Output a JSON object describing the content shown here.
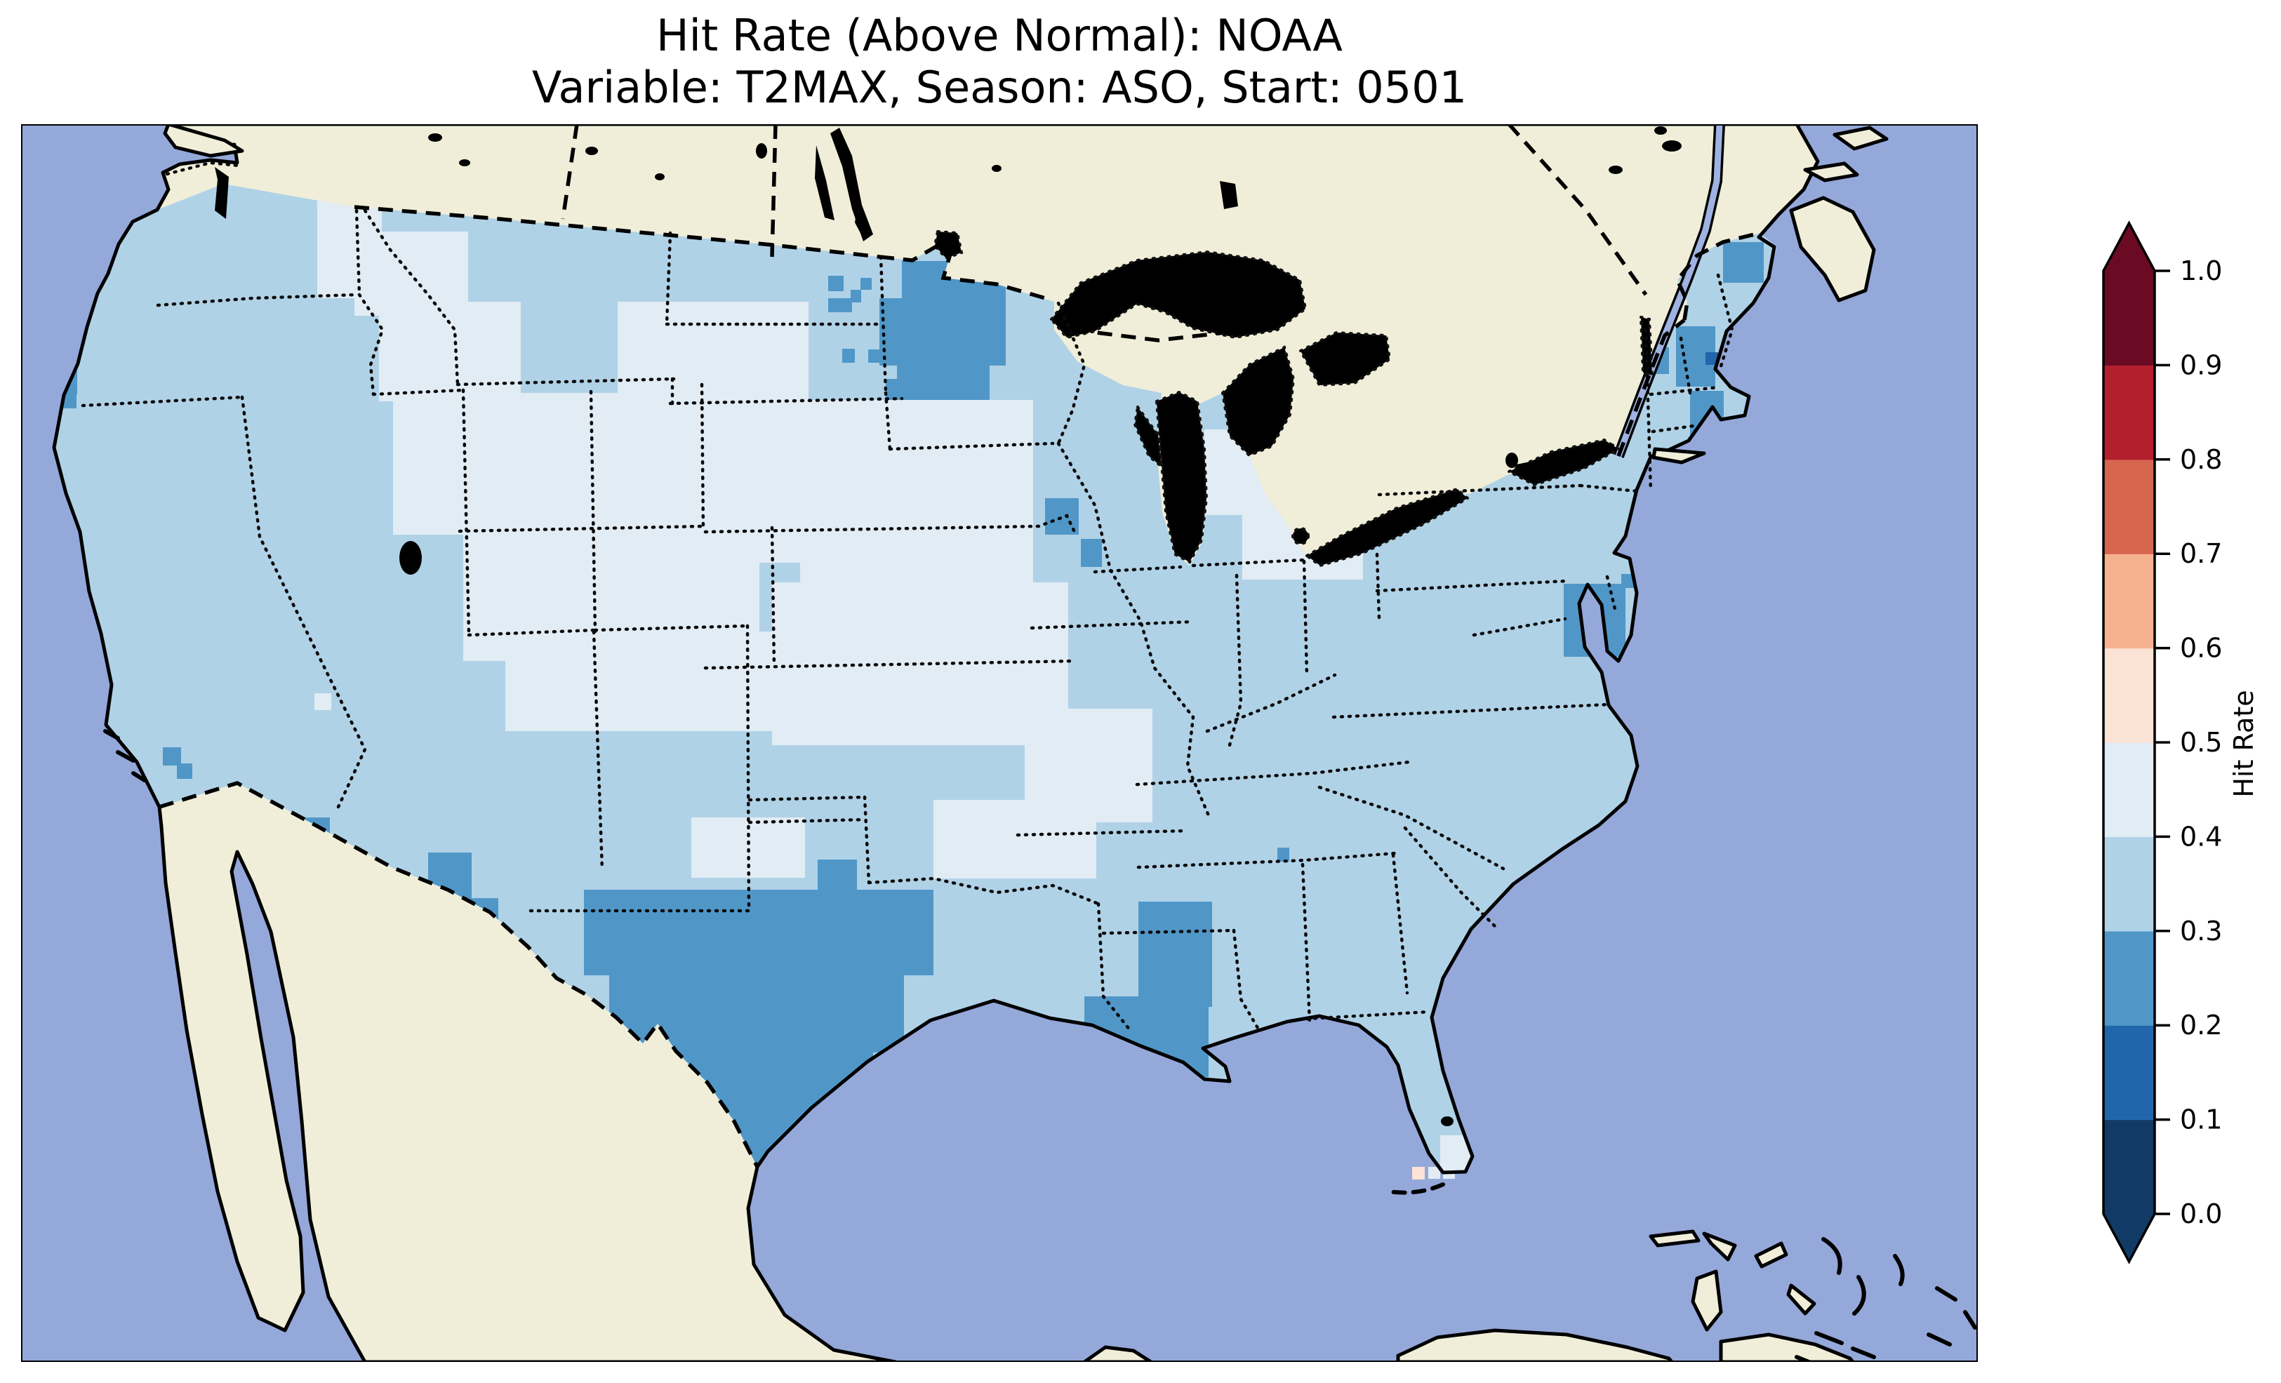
{
  "title": {
    "line1": "Hit Rate (Above Normal): NOAA",
    "line2": "Variable: T2MAX, Season: ASO, Start: 0501"
  },
  "colorbar": {
    "label": "Hit Rate",
    "tick_labels": [
      "0.0",
      "0.1",
      "0.2",
      "0.3",
      "0.4",
      "0.5",
      "0.6",
      "0.7",
      "0.8",
      "0.9",
      "1.0"
    ],
    "bin_colors": [
      "#123a66",
      "#2166ab",
      "#5097c8",
      "#b0d2e7",
      "#e2ecf4",
      "#fbe3d5",
      "#f6b28f",
      "#d7664f",
      "#b41f2e",
      "#6a0b23"
    ],
    "extend": "both"
  },
  "map": {
    "colors": {
      "ocean": "#94a8da",
      "land": "#f0eed9",
      "lake": "#9fb2e2",
      "coastline": "#000000",
      "us_base_bin": 3
    },
    "cells": [
      [
        1285,
        372,
        148,
        96,
        2
      ],
      [
        1253,
        425,
        180,
        96,
        2
      ],
      [
        1278,
        518,
        132,
        52,
        2
      ],
      [
        1226,
        396,
        16,
        17,
        2
      ],
      [
        1212,
        413,
        15,
        18,
        2
      ],
      [
        1237,
        498,
        17,
        19,
        2
      ],
      [
        1262,
        540,
        62,
        30,
        2
      ],
      [
        1180,
        393,
        22,
        22,
        2
      ],
      [
        1180,
        425,
        34,
        20,
        2
      ],
      [
        1200,
        497,
        18,
        20,
        2
      ],
      [
        1489,
        710,
        48,
        52,
        2
      ],
      [
        1540,
        768,
        30,
        40,
        2
      ],
      [
        352,
        222,
        46,
        26,
        2
      ],
      [
        390,
        240,
        30,
        24,
        2
      ],
      [
        332,
        212,
        17,
        15,
        2
      ],
      [
        70,
        500,
        40,
        62,
        2
      ],
      [
        86,
        552,
        23,
        30,
        2
      ],
      [
        232,
        1065,
        26,
        26,
        2
      ],
      [
        252,
        1088,
        22,
        22,
        2
      ],
      [
        420,
        1165,
        50,
        60,
        2
      ],
      [
        420,
        1220,
        76,
        54,
        2
      ],
      [
        472,
        1252,
        28,
        24,
        2
      ],
      [
        478,
        1242,
        38,
        34,
        2
      ],
      [
        545,
        1243,
        38,
        22,
        2
      ],
      [
        610,
        1215,
        62,
        100,
        2
      ],
      [
        648,
        1280,
        62,
        44,
        2
      ],
      [
        832,
        1268,
        498,
        122,
        2
      ],
      [
        868,
        1388,
        420,
        112,
        2
      ],
      [
        912,
        1498,
        332,
        92,
        2
      ],
      [
        968,
        1588,
        212,
        62,
        2
      ],
      [
        1008,
        1645,
        96,
        45,
        2
      ],
      [
        1165,
        1225,
        56,
        46,
        2
      ],
      [
        1622,
        1285,
        105,
        150,
        2
      ],
      [
        1545,
        1420,
        177,
        115,
        2
      ],
      [
        1620,
        1530,
        62,
        62,
        2
      ],
      [
        1691,
        1310,
        24,
        24,
        2
      ],
      [
        2228,
        832,
        88,
        104,
        2
      ],
      [
        2310,
        818,
        20,
        20,
        2
      ],
      [
        2455,
        345,
        58,
        58,
        2
      ],
      [
        2388,
        465,
        56,
        86,
        2
      ],
      [
        2328,
        495,
        50,
        38,
        2
      ],
      [
        2408,
        557,
        48,
        64,
        2
      ],
      [
        1820,
        1208,
        17,
        20,
        2
      ],
      [
        2430,
        502,
        18,
        18,
        1
      ],
      [
        452,
        275,
        92,
        150,
        4
      ],
      [
        505,
        330,
        162,
        120,
        4
      ],
      [
        540,
        430,
        202,
        142,
        4
      ],
      [
        560,
        560,
        182,
        202,
        4
      ],
      [
        880,
        430,
        272,
        212,
        4
      ],
      [
        700,
        560,
        442,
        242,
        4
      ],
      [
        660,
        740,
        422,
        202,
        4
      ],
      [
        720,
        900,
        382,
        142,
        4
      ],
      [
        1140,
        570,
        332,
        262,
        4
      ],
      [
        1100,
        830,
        422,
        232,
        4
      ],
      [
        1460,
        1010,
        182,
        162,
        4
      ],
      [
        985,
        1165,
        162,
        86,
        4
      ],
      [
        1330,
        1140,
        232,
        112,
        4
      ],
      [
        1590,
        445,
        132,
        56,
        4
      ],
      [
        1716,
        612,
        122,
        122,
        4
      ],
      [
        1770,
        730,
        172,
        96,
        4
      ],
      [
        2052,
        1618,
        50,
        50,
        4
      ],
      [
        448,
        988,
        24,
        24,
        4
      ]
    ],
    "offshore_cells": [
      [
        2012,
        1663,
        18,
        18,
        5
      ],
      [
        2035,
        1663,
        17,
        17,
        4
      ],
      [
        2056,
        1663,
        17,
        17,
        4
      ]
    ]
  },
  "chart_data": {
    "type": "heatmap",
    "title": "Hit Rate (Above Normal): NOAA — Variable: T2MAX, Season: ASO, Start: 0501",
    "colorbar_label": "Hit Rate",
    "value_range": [
      0.0,
      1.0
    ],
    "bin_edges": [
      0.0,
      0.1,
      0.2,
      0.3,
      0.4,
      0.5,
      0.6,
      0.7,
      0.8,
      0.9,
      1.0
    ],
    "legend_position": "right",
    "region": "Contiguous United States",
    "notable_values": [
      {
        "area": "most of CONUS",
        "hit_rate": "0.3-0.4"
      },
      {
        "area": "northern Rockies / high plains / Ohio valley",
        "hit_rate": "0.4-0.5"
      },
      {
        "area": "Minnesota",
        "hit_rate": "0.2-0.3"
      },
      {
        "area": "southern Texas",
        "hit_rate": "0.2-0.3"
      },
      {
        "area": "Louisiana",
        "hit_rate": "0.2-0.3"
      },
      {
        "area": "Chesapeake Bay area",
        "hit_rate": "0.2-0.3"
      },
      {
        "area": "northern New England patches",
        "hit_rate": "0.2-0.3"
      },
      {
        "area": "cell near Boston",
        "hit_rate": "0.1-0.2"
      },
      {
        "area": "cells near Florida Keys",
        "hit_rate": "0.4-0.6"
      }
    ]
  }
}
